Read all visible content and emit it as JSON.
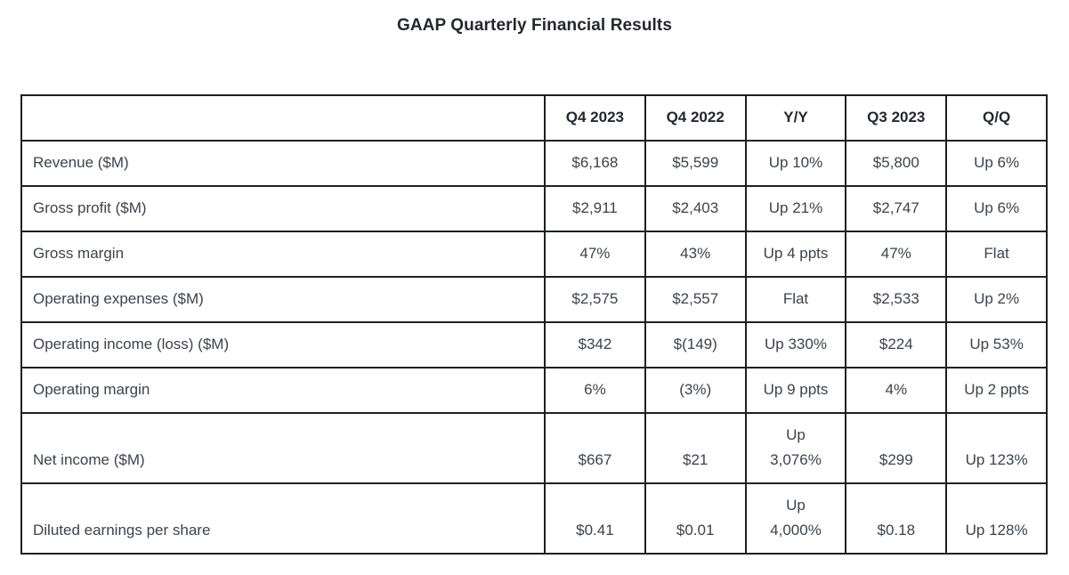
{
  "chart_data": {
    "type": "table",
    "title": "GAAP Quarterly Financial Results",
    "columns": [
      "",
      "Q4 2023",
      "Q4 2022",
      "Y/Y",
      "Q3 2023",
      "Q/Q"
    ],
    "rows": [
      {
        "label": "Revenue ($M)",
        "values": [
          "$6,168",
          "$5,599",
          "Up 10%",
          "$5,800",
          "Up 6%"
        ]
      },
      {
        "label": "Gross profit ($M)",
        "values": [
          "$2,911",
          "$2,403",
          "Up 21%",
          "$2,747",
          "Up 6%"
        ]
      },
      {
        "label": "Gross margin",
        "values": [
          "47%",
          "43%",
          "Up 4 ppts",
          "47%",
          "Flat"
        ]
      },
      {
        "label": "Operating expenses ($M)",
        "values": [
          "$2,575",
          "$2,557",
          "Flat",
          "$2,533",
          "Up 2%"
        ]
      },
      {
        "label": "Operating income (loss) ($M)",
        "values": [
          "$342",
          "$(149)",
          "Up 330%",
          "$224",
          "Up 53%"
        ]
      },
      {
        "label": "Operating margin",
        "values": [
          "6%",
          "(3%)",
          "Up 9 ppts",
          "4%",
          "Up 2 ppts"
        ]
      },
      {
        "label": "Net income ($M)",
        "values": [
          "$667",
          "$21",
          "Up\n3,076%",
          "$299",
          "Up 123%"
        ]
      },
      {
        "label": "Diluted earnings per share",
        "values": [
          "$0.41",
          "$0.01",
          "Up\n4,000%",
          "$0.18",
          "Up 128%"
        ]
      }
    ],
    "layout_hints": {
      "text_color": "#3b434c",
      "header_color": "#23282e",
      "border_color": "#1c2025",
      "background": "#ffffff"
    }
  }
}
